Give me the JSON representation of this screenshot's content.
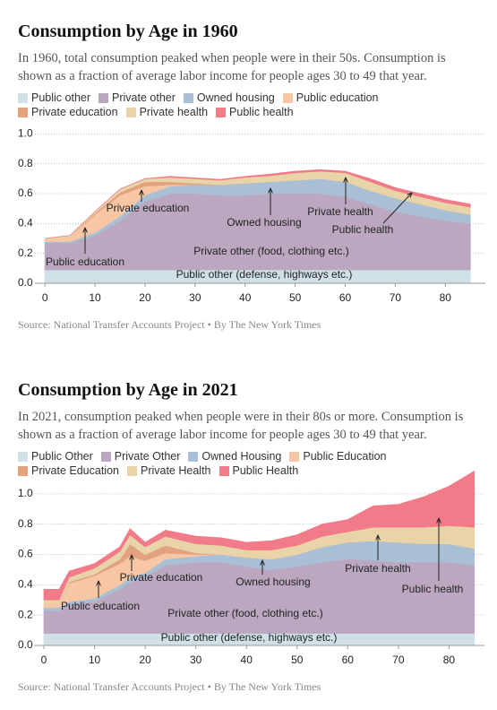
{
  "chart_data": [
    {
      "type": "stacked-area",
      "title": "Consumption by Age in 1960",
      "subtitle": "In 1960, total consumption peaked when people were in their 50s. Consumption is shown as a fraction of average labor income for people ages 30 to 49 that year.",
      "source": "Source: National Transfer Accounts Project • By The New York Times",
      "x": [
        0,
        5,
        10,
        15,
        20,
        25,
        30,
        35,
        40,
        45,
        50,
        55,
        60,
        65,
        70,
        75,
        80,
        85
      ],
      "series": [
        {
          "name": "Public other",
          "color": "#cfe0e6",
          "values": [
            0.09,
            0.09,
            0.09,
            0.09,
            0.09,
            0.09,
            0.09,
            0.09,
            0.09,
            0.09,
            0.09,
            0.09,
            0.09,
            0.09,
            0.09,
            0.09,
            0.09,
            0.09
          ]
        },
        {
          "name": "Private other",
          "color": "#bba8c0",
          "values": [
            0.18,
            0.18,
            0.23,
            0.33,
            0.46,
            0.51,
            0.51,
            0.5,
            0.5,
            0.51,
            0.51,
            0.51,
            0.49,
            0.44,
            0.39,
            0.36,
            0.33,
            0.31
          ]
        },
        {
          "name": "Owned housing",
          "color": "#a9bfd6",
          "values": [
            0.01,
            0.01,
            0.02,
            0.03,
            0.04,
            0.05,
            0.06,
            0.07,
            0.08,
            0.08,
            0.09,
            0.1,
            0.1,
            0.09,
            0.09,
            0.08,
            0.07,
            0.06
          ]
        },
        {
          "name": "Public education",
          "color": "#f7c7a5",
          "values": [
            0.01,
            0.03,
            0.12,
            0.14,
            0.06,
            0.01,
            0,
            0,
            0,
            0,
            0,
            0,
            0,
            0,
            0,
            0,
            0,
            0
          ]
        },
        {
          "name": "Private education",
          "color": "#e2a27f",
          "values": [
            0,
            0,
            0.01,
            0.02,
            0.03,
            0.02,
            0.01,
            0,
            0,
            0,
            0,
            0,
            0,
            0,
            0,
            0,
            0,
            0
          ]
        },
        {
          "name": "Private health",
          "color": "#e8d4a8",
          "values": [
            0.01,
            0.01,
            0.01,
            0.02,
            0.02,
            0.03,
            0.03,
            0.03,
            0.04,
            0.04,
            0.05,
            0.05,
            0.06,
            0.06,
            0.05,
            0.05,
            0.05,
            0.05
          ]
        },
        {
          "name": "Public health",
          "color": "#f27b89",
          "values": [
            0,
            0,
            0,
            0,
            0,
            0.005,
            0.005,
            0.005,
            0.005,
            0.01,
            0.01,
            0.01,
            0.01,
            0.02,
            0.02,
            0.02,
            0.02,
            0.02
          ]
        }
      ],
      "annotations": [
        "Private education",
        "Owned housing",
        "Private health",
        "Public health",
        "Public education",
        "Private other (food, clothing etc.)",
        "Public other (defense, highways etc.)"
      ],
      "xlim": [
        -2,
        88
      ],
      "xticks": [
        0,
        10,
        20,
        30,
        40,
        50,
        60,
        70,
        80
      ],
      "ylim": [
        0,
        1.05
      ],
      "yticks": [
        {
          "value": 0,
          "label": "0.0"
        },
        {
          "value": 0.2,
          "label": "0.2"
        },
        {
          "value": 0.4,
          "label": "0.4"
        },
        {
          "value": 0.6,
          "label": "0.6"
        },
        {
          "value": 0.8,
          "label": "0.8"
        },
        {
          "value": 1,
          "label": "1.0"
        }
      ],
      "grid": true
    },
    {
      "type": "stacked-area",
      "title": "Consumption by Age in 2021",
      "subtitle": "In 2021, consumption peaked when people were in their 80s or more. Consumption is shown as a fraction of average labor income for people ages 30 to 49 that year.",
      "source": "Source: National Transfer Accounts Project • By The New York Times",
      "x": [
        0,
        3,
        5,
        10,
        15,
        17,
        20,
        24,
        30,
        35,
        40,
        45,
        50,
        55,
        60,
        65,
        70,
        75,
        80,
        85
      ],
      "series": [
        {
          "name": "Public Other",
          "color": "#cfe0e6",
          "values": [
            0.08,
            0.08,
            0.08,
            0.08,
            0.08,
            0.08,
            0.08,
            0.08,
            0.08,
            0.08,
            0.08,
            0.08,
            0.08,
            0.08,
            0.08,
            0.08,
            0.08,
            0.08,
            0.08,
            0.08
          ]
        },
        {
          "name": "Private Other",
          "color": "#bba8c0",
          "values": [
            0.15,
            0.15,
            0.19,
            0.21,
            0.29,
            0.34,
            0.37,
            0.45,
            0.47,
            0.47,
            0.44,
            0.42,
            0.44,
            0.47,
            0.49,
            0.48,
            0.47,
            0.47,
            0.47,
            0.45
          ]
        },
        {
          "name": "Owned Housing",
          "color": "#a9bfd6",
          "values": [
            0.02,
            0.02,
            0.02,
            0.02,
            0.03,
            0.03,
            0.03,
            0.04,
            0.04,
            0.05,
            0.06,
            0.07,
            0.08,
            0.1,
            0.11,
            0.13,
            0.13,
            0.12,
            0.12,
            0.11
          ]
        },
        {
          "name": "Public Education",
          "color": "#f7c7a5",
          "values": [
            0.03,
            0.03,
            0.12,
            0.15,
            0.14,
            0.14,
            0.08,
            0.04,
            0.01,
            0,
            0,
            0,
            0,
            0,
            0,
            0,
            0,
            0,
            0,
            0
          ]
        },
        {
          "name": "Private Education",
          "color": "#e2a27f",
          "values": [
            0,
            0,
            0.01,
            0.01,
            0.03,
            0.08,
            0.04,
            0.05,
            0.01,
            0,
            0,
            0,
            0,
            0,
            0,
            0,
            0,
            0,
            0,
            0
          ]
        },
        {
          "name": "Private Health",
          "color": "#e8d4a8",
          "values": [
            0.02,
            0.02,
            0.03,
            0.04,
            0.05,
            0.06,
            0.05,
            0.06,
            0.06,
            0.06,
            0.05,
            0.06,
            0.06,
            0.07,
            0.07,
            0.09,
            0.1,
            0.11,
            0.12,
            0.14
          ]
        },
        {
          "name": "Public Health",
          "color": "#f27b89",
          "values": [
            0.07,
            0.07,
            0.04,
            0.03,
            0.03,
            0.04,
            0.03,
            0.04,
            0.05,
            0.05,
            0.05,
            0.06,
            0.07,
            0.08,
            0.08,
            0.14,
            0.15,
            0.2,
            0.26,
            0.37
          ]
        }
      ],
      "annotations": [
        "Private education",
        "Owned housing",
        "Private health",
        "Public health",
        "Public education",
        "Private other (food, clothing etc.)",
        "Public other (defense, highways etc.)"
      ],
      "xlim": [
        -2,
        87
      ],
      "xticks": [
        0,
        10,
        20,
        30,
        40,
        50,
        60,
        70,
        80
      ],
      "ylim": [
        0,
        1.2
      ],
      "yticks": [
        {
          "value": 0,
          "label": "0.0"
        },
        {
          "value": 0.2,
          "label": "0.2"
        },
        {
          "value": 0.4,
          "label": "0.4"
        },
        {
          "value": 0.6,
          "label": "0.6"
        },
        {
          "value": 0.8,
          "label": "0.8"
        },
        {
          "value": 1,
          "label": "1.0"
        }
      ],
      "grid": true
    }
  ]
}
